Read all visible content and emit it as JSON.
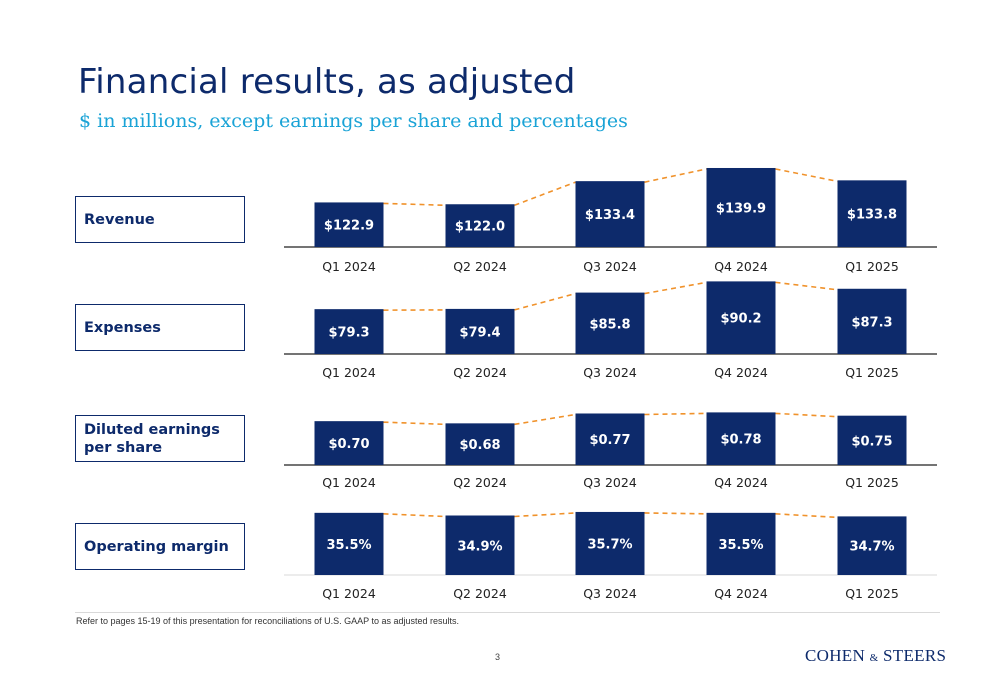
{
  "title": "Financial results, as adjusted",
  "subtitle": "$ in millions, except earnings per share and percentages",
  "colors": {
    "bar": "#0d2a6b",
    "connector": "#f0922b",
    "title": "#0d2a6b",
    "subtitle": "#1aa3d6"
  },
  "chart_data": [
    {
      "type": "bar",
      "label": "Revenue",
      "categories": [
        "Q1 2024",
        "Q2 2024",
        "Q3 2024",
        "Q4 2024",
        "Q1 2025"
      ],
      "values": [
        122.9,
        122.0,
        133.4,
        139.9,
        133.8
      ],
      "data_labels": [
        "$122.9",
        "$122.0",
        "$133.4",
        "$139.9",
        "$133.8"
      ]
    },
    {
      "type": "bar",
      "label": "Expenses",
      "categories": [
        "Q1 2024",
        "Q2 2024",
        "Q3 2024",
        "Q4 2024",
        "Q1 2025"
      ],
      "values": [
        79.3,
        79.4,
        85.8,
        90.2,
        87.3
      ],
      "data_labels": [
        "$79.3",
        "$79.4",
        "$85.8",
        "$90.2",
        "$87.3"
      ]
    },
    {
      "type": "bar",
      "label": "Diluted earnings per share",
      "categories": [
        "Q1 2024",
        "Q2 2024",
        "Q3 2024",
        "Q4 2024",
        "Q1 2025"
      ],
      "values": [
        0.7,
        0.68,
        0.77,
        0.78,
        0.75
      ],
      "data_labels": [
        "$0.70",
        "$0.68",
        "$0.77",
        "$0.78",
        "$0.75"
      ]
    },
    {
      "type": "bar",
      "label": "Operating margin",
      "categories": [
        "Q1 2024",
        "Q2 2024",
        "Q3 2024",
        "Q4 2024",
        "Q1 2025"
      ],
      "values": [
        35.5,
        34.9,
        35.7,
        35.5,
        34.7
      ],
      "data_labels": [
        "35.5%",
        "34.9%",
        "35.7%",
        "35.5%",
        "34.7%"
      ]
    }
  ],
  "labels": {
    "revenue": "Revenue",
    "expenses": "Expenses",
    "eps_line1": "Diluted earnings",
    "eps_line2": "per share",
    "margin": "Operating margin"
  },
  "footnote": "Refer to pages 15-19 of this presentation for reconciliations of U.S. GAAP to as adjusted results.",
  "page_number": "3",
  "logo": {
    "part1": "COHEN",
    "amp": "&",
    "part2": "STEERS"
  }
}
